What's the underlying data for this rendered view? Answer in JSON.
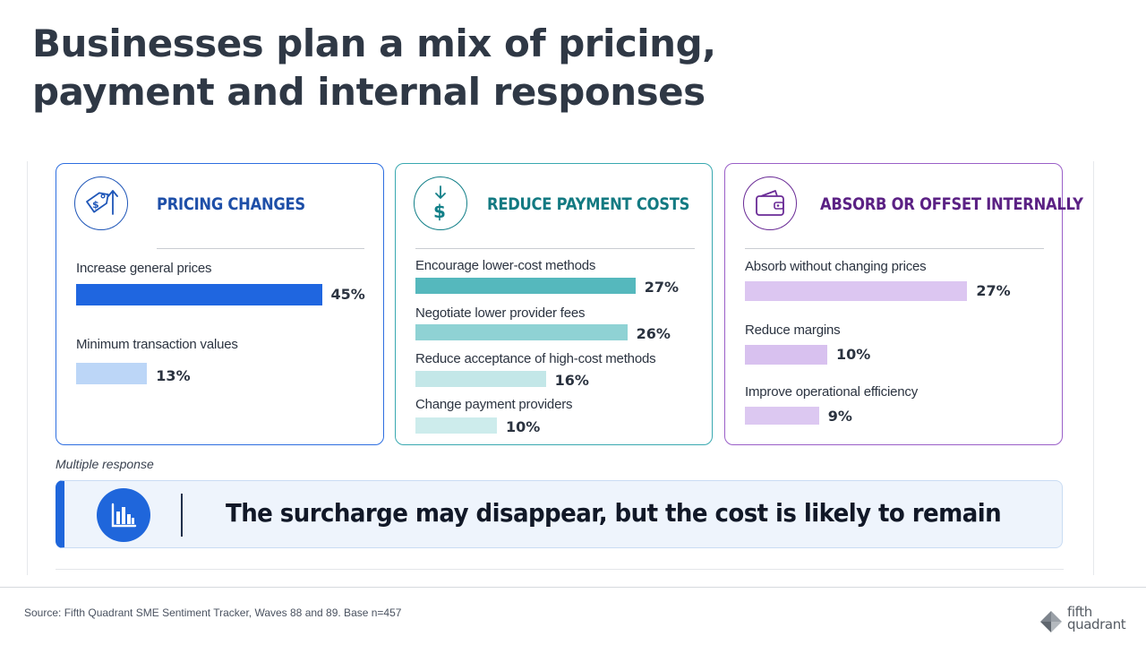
{
  "title_line1": "Businesses plan a mix of pricing,",
  "title_line2": "payment and internal responses",
  "chart_data": {
    "type": "bar",
    "unit": "%",
    "groups": [
      {
        "title": "PRICING CHANGES",
        "icon": "price-tag-arrow-up-icon",
        "color": "#1f66db",
        "items": [
          {
            "label": "Increase general prices",
            "value": 45,
            "display": "45%",
            "color": "#1f66e0"
          },
          {
            "label": "Minimum transaction values",
            "value": 13,
            "display": "13%",
            "color": "#bcd6f7"
          }
        ]
      },
      {
        "title": "REDUCE PAYMENT COSTS",
        "icon": "dollar-arrow-down-icon",
        "color": "#137a82",
        "items": [
          {
            "label": "Encourage lower-cost methods",
            "value": 27,
            "display": "27%",
            "color": "#55b8bd"
          },
          {
            "label": "Negotiate lower provider fees",
            "value": 26,
            "display": "26%",
            "color": "#8fd2d4"
          },
          {
            "label": "Reduce acceptance of high-cost methods",
            "value": 16,
            "display": "16%",
            "color": "#c3e7e8"
          },
          {
            "label": "Change payment providers",
            "value": 10,
            "display": "10%",
            "color": "#cdecec"
          }
        ]
      },
      {
        "title": "ABSORB OR OFFSET INTERNALLY",
        "icon": "wallet-icon",
        "color": "#5b2184",
        "items": [
          {
            "label": "Absorb without changing prices",
            "value": 27,
            "display": "27%",
            "color": "#dcc6f1"
          },
          {
            "label": "Reduce margins",
            "value": 10,
            "display": "10%",
            "color": "#d8c1ef"
          },
          {
            "label": "Improve operational efficiency",
            "value": 9,
            "display": "9%",
            "color": "#dcc8f1"
          }
        ]
      }
    ]
  },
  "note": "Multiple response",
  "banner": {
    "text": "The surcharge may disappear, but the cost is likely to remain",
    "icon": "bar-chart-icon"
  },
  "source": "Source: Fifth Quadrant SME Sentiment Tracker, Waves 88 and 89. Base n=457",
  "logo": {
    "line1": "fifth",
    "line2": "quadrant"
  }
}
